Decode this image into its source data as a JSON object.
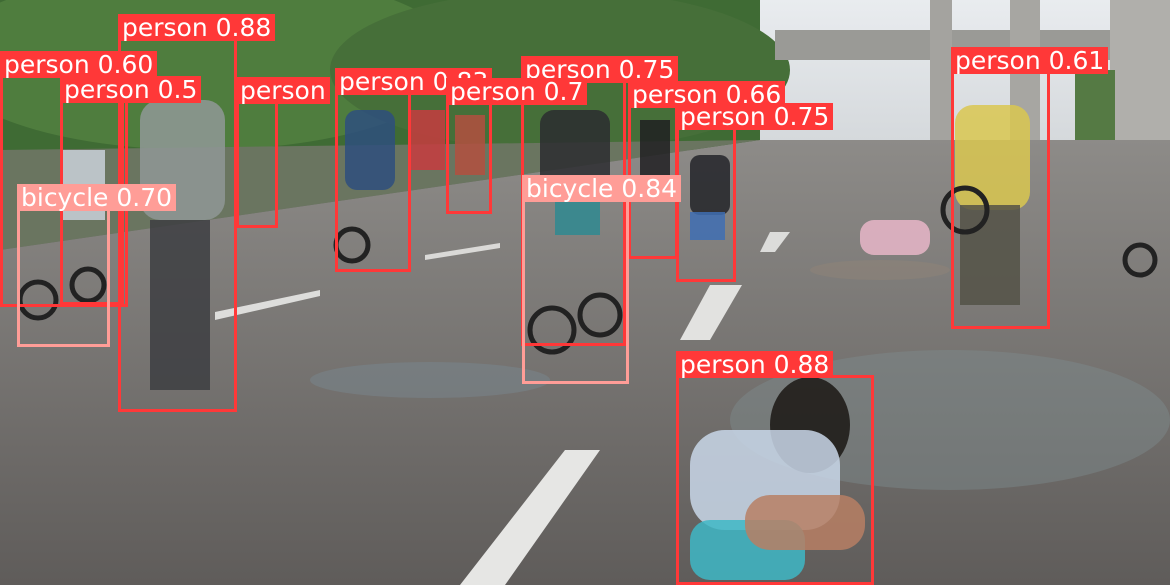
{
  "colors": {
    "person": "#ff3838",
    "bicycle": "#ff9d97"
  },
  "detections": [
    {
      "label": "person 0.88"
    },
    {
      "label": "person 0.60"
    },
    {
      "label": "person 0.5"
    },
    {
      "label": "person"
    },
    {
      "label": "person 0.83"
    },
    {
      "label": "person 0.75"
    },
    {
      "label": "person 0.7"
    },
    {
      "label": "person 0.66"
    },
    {
      "label": "person 0.75"
    },
    {
      "label": "person 0.61"
    },
    {
      "label": "person 0.88"
    },
    {
      "label": "bicycle 0.70"
    },
    {
      "label": "bicycle 0.84"
    }
  ]
}
